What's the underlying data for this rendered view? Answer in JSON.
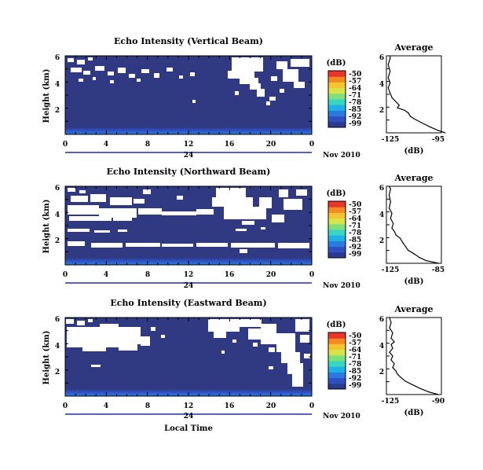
{
  "chart_data": [
    {
      "type": "heatmap",
      "title": "Echo Intensity (Vertical Beam)",
      "ylabel": "Height (km)",
      "y_ticks": [
        "2",
        "4",
        "6"
      ],
      "y_range_km": [
        0,
        6
      ],
      "x_ticks": [
        "0",
        "4",
        "8",
        "12",
        "16",
        "20",
        "0"
      ],
      "x_range_hours": [
        0,
        24
      ],
      "date_day": "24",
      "date_label": "Nov 2010",
      "colorbar": {
        "unit": "(dB)",
        "levels": [
          "-50",
          "-57",
          "-64",
          "-71",
          "-78",
          "-85",
          "-92",
          "-99"
        ]
      },
      "color_scale": [
        "#2b3a8f",
        "#2f4fc2",
        "#2a7be0",
        "#1fb0e8",
        "#36d6c2",
        "#7fe07a",
        "#d8e34a",
        "#f5c430",
        "#f58a23",
        "#e8362a"
      ],
      "background_color": "#2f3a82",
      "no_data_color": "#ffffff",
      "profile": {
        "title": "Average",
        "xlabel": "(dB)",
        "x_ticks": [
          "-125",
          "-95"
        ],
        "x_range": [
          -125,
          -95
        ],
        "y_ticks": [
          "2",
          "4",
          "6"
        ],
        "y_range_km": [
          0,
          6
        ],
        "points": [
          [
            -93,
            0
          ],
          [
            -97,
            0.2
          ],
          [
            -101,
            0.45
          ],
          [
            -106,
            0.8
          ],
          [
            -110,
            1.1
          ],
          [
            -112,
            1.3
          ],
          [
            -113,
            1.55
          ],
          [
            -115,
            1.75
          ],
          [
            -119,
            1.95
          ],
          [
            -118,
            2.15
          ],
          [
            -120,
            2.45
          ],
          [
            -122,
            2.75
          ],
          [
            -123,
            3.1
          ],
          [
            -124,
            3.5
          ],
          [
            -123,
            3.9
          ],
          [
            -124,
            4.3
          ],
          [
            -123,
            4.8
          ],
          [
            -124,
            5.3
          ],
          [
            -123,
            5.8
          ],
          [
            -123,
            6
          ]
        ]
      }
    },
    {
      "type": "heatmap",
      "title": "Echo Intensity (Northward Beam)",
      "ylabel": "Height (km)",
      "y_ticks": [
        "2",
        "4",
        "6"
      ],
      "y_range_km": [
        0,
        6
      ],
      "x_ticks": [
        "0",
        "4",
        "8",
        "12",
        "16",
        "20",
        "0"
      ],
      "x_range_hours": [
        0,
        24
      ],
      "date_day": "24",
      "date_label": "Nov 2010",
      "colorbar": {
        "unit": "(dB)",
        "levels": [
          "-50",
          "-57",
          "-64",
          "-71",
          "-78",
          "-85",
          "-92",
          "-99"
        ]
      },
      "color_scale": [
        "#2b3a8f",
        "#2f4fc2",
        "#2a7be0",
        "#1fb0e8",
        "#36d6c2",
        "#7fe07a",
        "#d8e34a",
        "#f5c430",
        "#f58a23",
        "#e8362a"
      ],
      "background_color": "#2f3a82",
      "no_data_color": "#ffffff",
      "profile": {
        "title": "Average",
        "xlabel": "(dB)",
        "x_ticks": [
          "-125",
          "-85"
        ],
        "x_range": [
          -125,
          -85
        ],
        "y_ticks": [
          "2",
          "4",
          "6"
        ],
        "y_range_km": [
          0,
          6
        ],
        "points": [
          [
            -87,
            0
          ],
          [
            -96,
            0.2
          ],
          [
            -101,
            0.45
          ],
          [
            -105,
            0.75
          ],
          [
            -109,
            1.0
          ],
          [
            -111,
            1.3
          ],
          [
            -113,
            1.6
          ],
          [
            -115,
            1.95
          ],
          [
            -118,
            2.2
          ],
          [
            -119,
            2.45
          ],
          [
            -121,
            2.75
          ],
          [
            -120,
            3.1
          ],
          [
            -122,
            3.5
          ],
          [
            -121,
            3.9
          ],
          [
            -123,
            4.3
          ],
          [
            -122,
            4.8
          ],
          [
            -123,
            5.3
          ],
          [
            -122,
            5.8
          ],
          [
            -123,
            6
          ]
        ]
      }
    },
    {
      "type": "heatmap",
      "title": "Echo Intensity (Eastward Beam)",
      "ylabel": "Height (km)",
      "xlabel": "Local Time",
      "y_ticks": [
        "2",
        "4",
        "6"
      ],
      "y_range_km": [
        0,
        6
      ],
      "x_ticks": [
        "0",
        "4",
        "8",
        "12",
        "16",
        "20",
        "0"
      ],
      "x_range_hours": [
        0,
        24
      ],
      "date_day": "24",
      "date_label": "Nov 2010",
      "colorbar": {
        "unit": "(dB)",
        "levels": [
          "-50",
          "-57",
          "-64",
          "-71",
          "-78",
          "-85",
          "-92",
          "-99"
        ]
      },
      "color_scale": [
        "#2b3a8f",
        "#2f4fc2",
        "#2a7be0",
        "#1fb0e8",
        "#36d6c2",
        "#7fe07a",
        "#d8e34a",
        "#f5c430",
        "#f58a23",
        "#e8362a"
      ],
      "background_color": "#2f3a82",
      "no_data_color": "#ffffff",
      "profile": {
        "title": "Average",
        "xlabel": "(dB)",
        "x_ticks": [
          "-125",
          "-90"
        ],
        "x_range": [
          -125,
          -90
        ],
        "y_ticks": [
          "2",
          "4",
          "6"
        ],
        "y_range_km": [
          0,
          6
        ],
        "points": [
          [
            -92,
            0
          ],
          [
            -98,
            0.2
          ],
          [
            -104,
            0.5
          ],
          [
            -109,
            0.8
          ],
          [
            -113,
            1.05
          ],
          [
            -116,
            1.35
          ],
          [
            -118,
            1.6
          ],
          [
            -119,
            1.85
          ],
          [
            -121,
            2.1
          ],
          [
            -120,
            2.4
          ],
          [
            -122,
            2.7
          ],
          [
            -121,
            3.0
          ],
          [
            -123,
            3.3
          ],
          [
            -121,
            3.6
          ],
          [
            -122,
            3.9
          ],
          [
            -120,
            4.1
          ],
          [
            -122,
            4.4
          ],
          [
            -121,
            4.8
          ],
          [
            -123,
            5.2
          ],
          [
            -122,
            5.6
          ],
          [
            -123,
            6
          ]
        ]
      }
    }
  ]
}
